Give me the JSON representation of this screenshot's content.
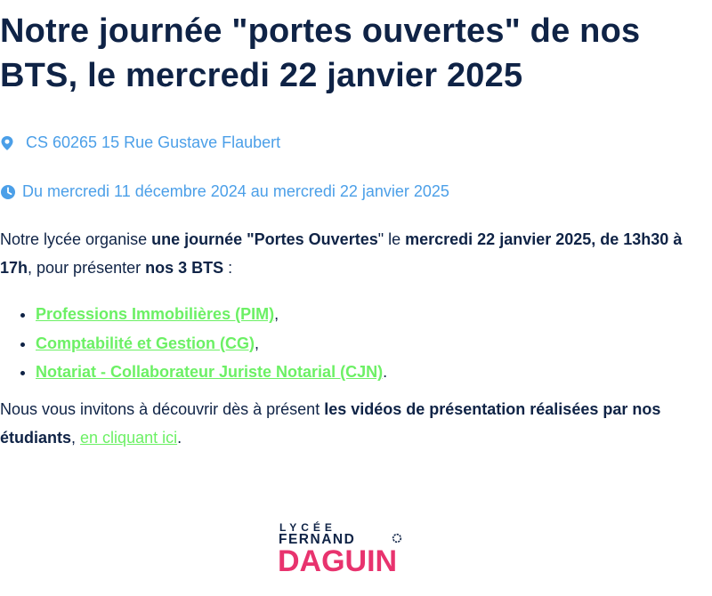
{
  "page": {
    "title": "Notre journée \"portes ouvertes\" de nos BTS, le mercredi 22 janvier 2025",
    "location": "CS 60265 15 Rue Gustave Flaubert",
    "dates": "Du mercredi 11 décembre 2024 au mercredi 22 janvier 2025"
  },
  "intro": {
    "t1": "Notre lycée organise ",
    "b1": "une journée \"",
    "b2": "Portes Ouvertes",
    "b3": "\"",
    "t2": " le ",
    "b4": "mercredi 22 janvier 2025, de 13h30 à 17h",
    "t3": ", pour présenter ",
    "b5": "nos 3 BTS",
    "t4": " :"
  },
  "bts_list": [
    {
      "label": "Professions Immobilières (PIM)",
      "suffix": ","
    },
    {
      "label": "Comptabilité et Gestion (CG)",
      "suffix": ","
    },
    {
      "label": "Notariat - Collaborateur Juriste Notarial (CJN)",
      "suffix": "."
    }
  ],
  "outro": {
    "t1": "Nous vous invitons à découvrir dès à présent ",
    "b1": "les vidéos de présentation réalisées par nos étudiants",
    "t2": ", ",
    "link": "en cliquant ici",
    "t3": "."
  },
  "logo": {
    "line1": "LYCÉE",
    "line2": "FERNAND",
    "line3": "DAGUIN"
  },
  "colors": {
    "heading": "#0f2346",
    "meta_blue": "#4b9fe8",
    "link_green": "#6cf065",
    "logo_pink": "#e8336e",
    "logo_blue": "#1b9ad6",
    "logo_teal": "#1fb3a6"
  },
  "icons": [
    "map-pin-icon",
    "clock-icon",
    "ring-icon"
  ]
}
